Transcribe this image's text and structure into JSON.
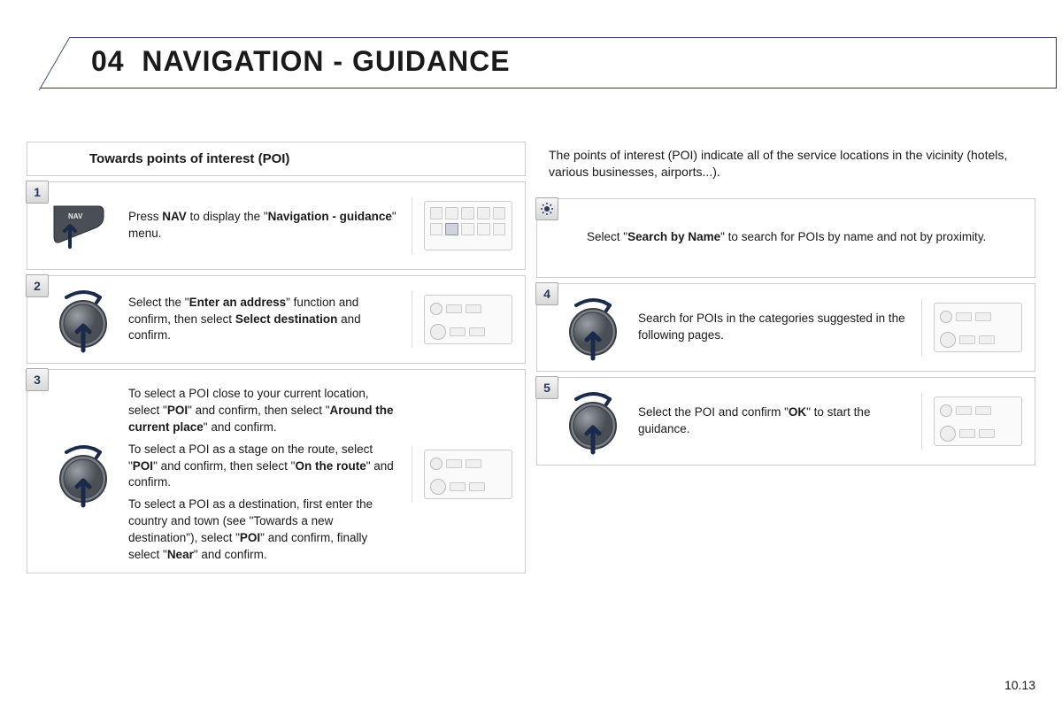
{
  "header": {
    "chapter_num": "04",
    "title": "NAVIGATION - GUIDANCE"
  },
  "left_section_title": "Towards points of interest (POI)",
  "right_intro": "The points of interest (POI) indicate all of the service locations in the vicinity (hotels, various businesses, airports...).",
  "steps": {
    "s1": {
      "num": "1",
      "html": "Press <b>NAV</b> to display the \"<b>Navigation - guidance</b>\" menu."
    },
    "s2": {
      "num": "2",
      "html": "Select the \"<b>Enter an address</b>\" function and confirm, then select <b>Select destination</b> and confirm."
    },
    "s3": {
      "num": "3",
      "p1": "To select a POI close to your current location, select \"<b>POI</b>\" and confirm, then select \"<b>Around the current place</b>\" and confirm.",
      "p2": "To select a POI as a stage on the route, select \"<b>POI</b>\" and confirm, then select \"<b>On the route</b>\" and confirm.",
      "p3": "To select a POI as a destination, first enter the country and town (see \"Towards a new destination\"), select \"<b>POI</b>\" and confirm, finally select \"<b>Near</b>\" and confirm."
    },
    "tip": {
      "html": "Select \"<b>Search by Name</b>\" to search for POIs by name and not by proximity."
    },
    "s4": {
      "num": "4",
      "html": "Search for POIs in the categories suggested in the following pages."
    },
    "s5": {
      "num": "5",
      "html": "Select the POI and confirm \"<b>OK</b>\" to start the guidance."
    }
  },
  "page_number": "10.13",
  "colors": {
    "accent": "#2b3a5c",
    "border": "#cfcfcf",
    "dial_fill": "#6a6f74",
    "dial_dark": "#3a3f45"
  }
}
